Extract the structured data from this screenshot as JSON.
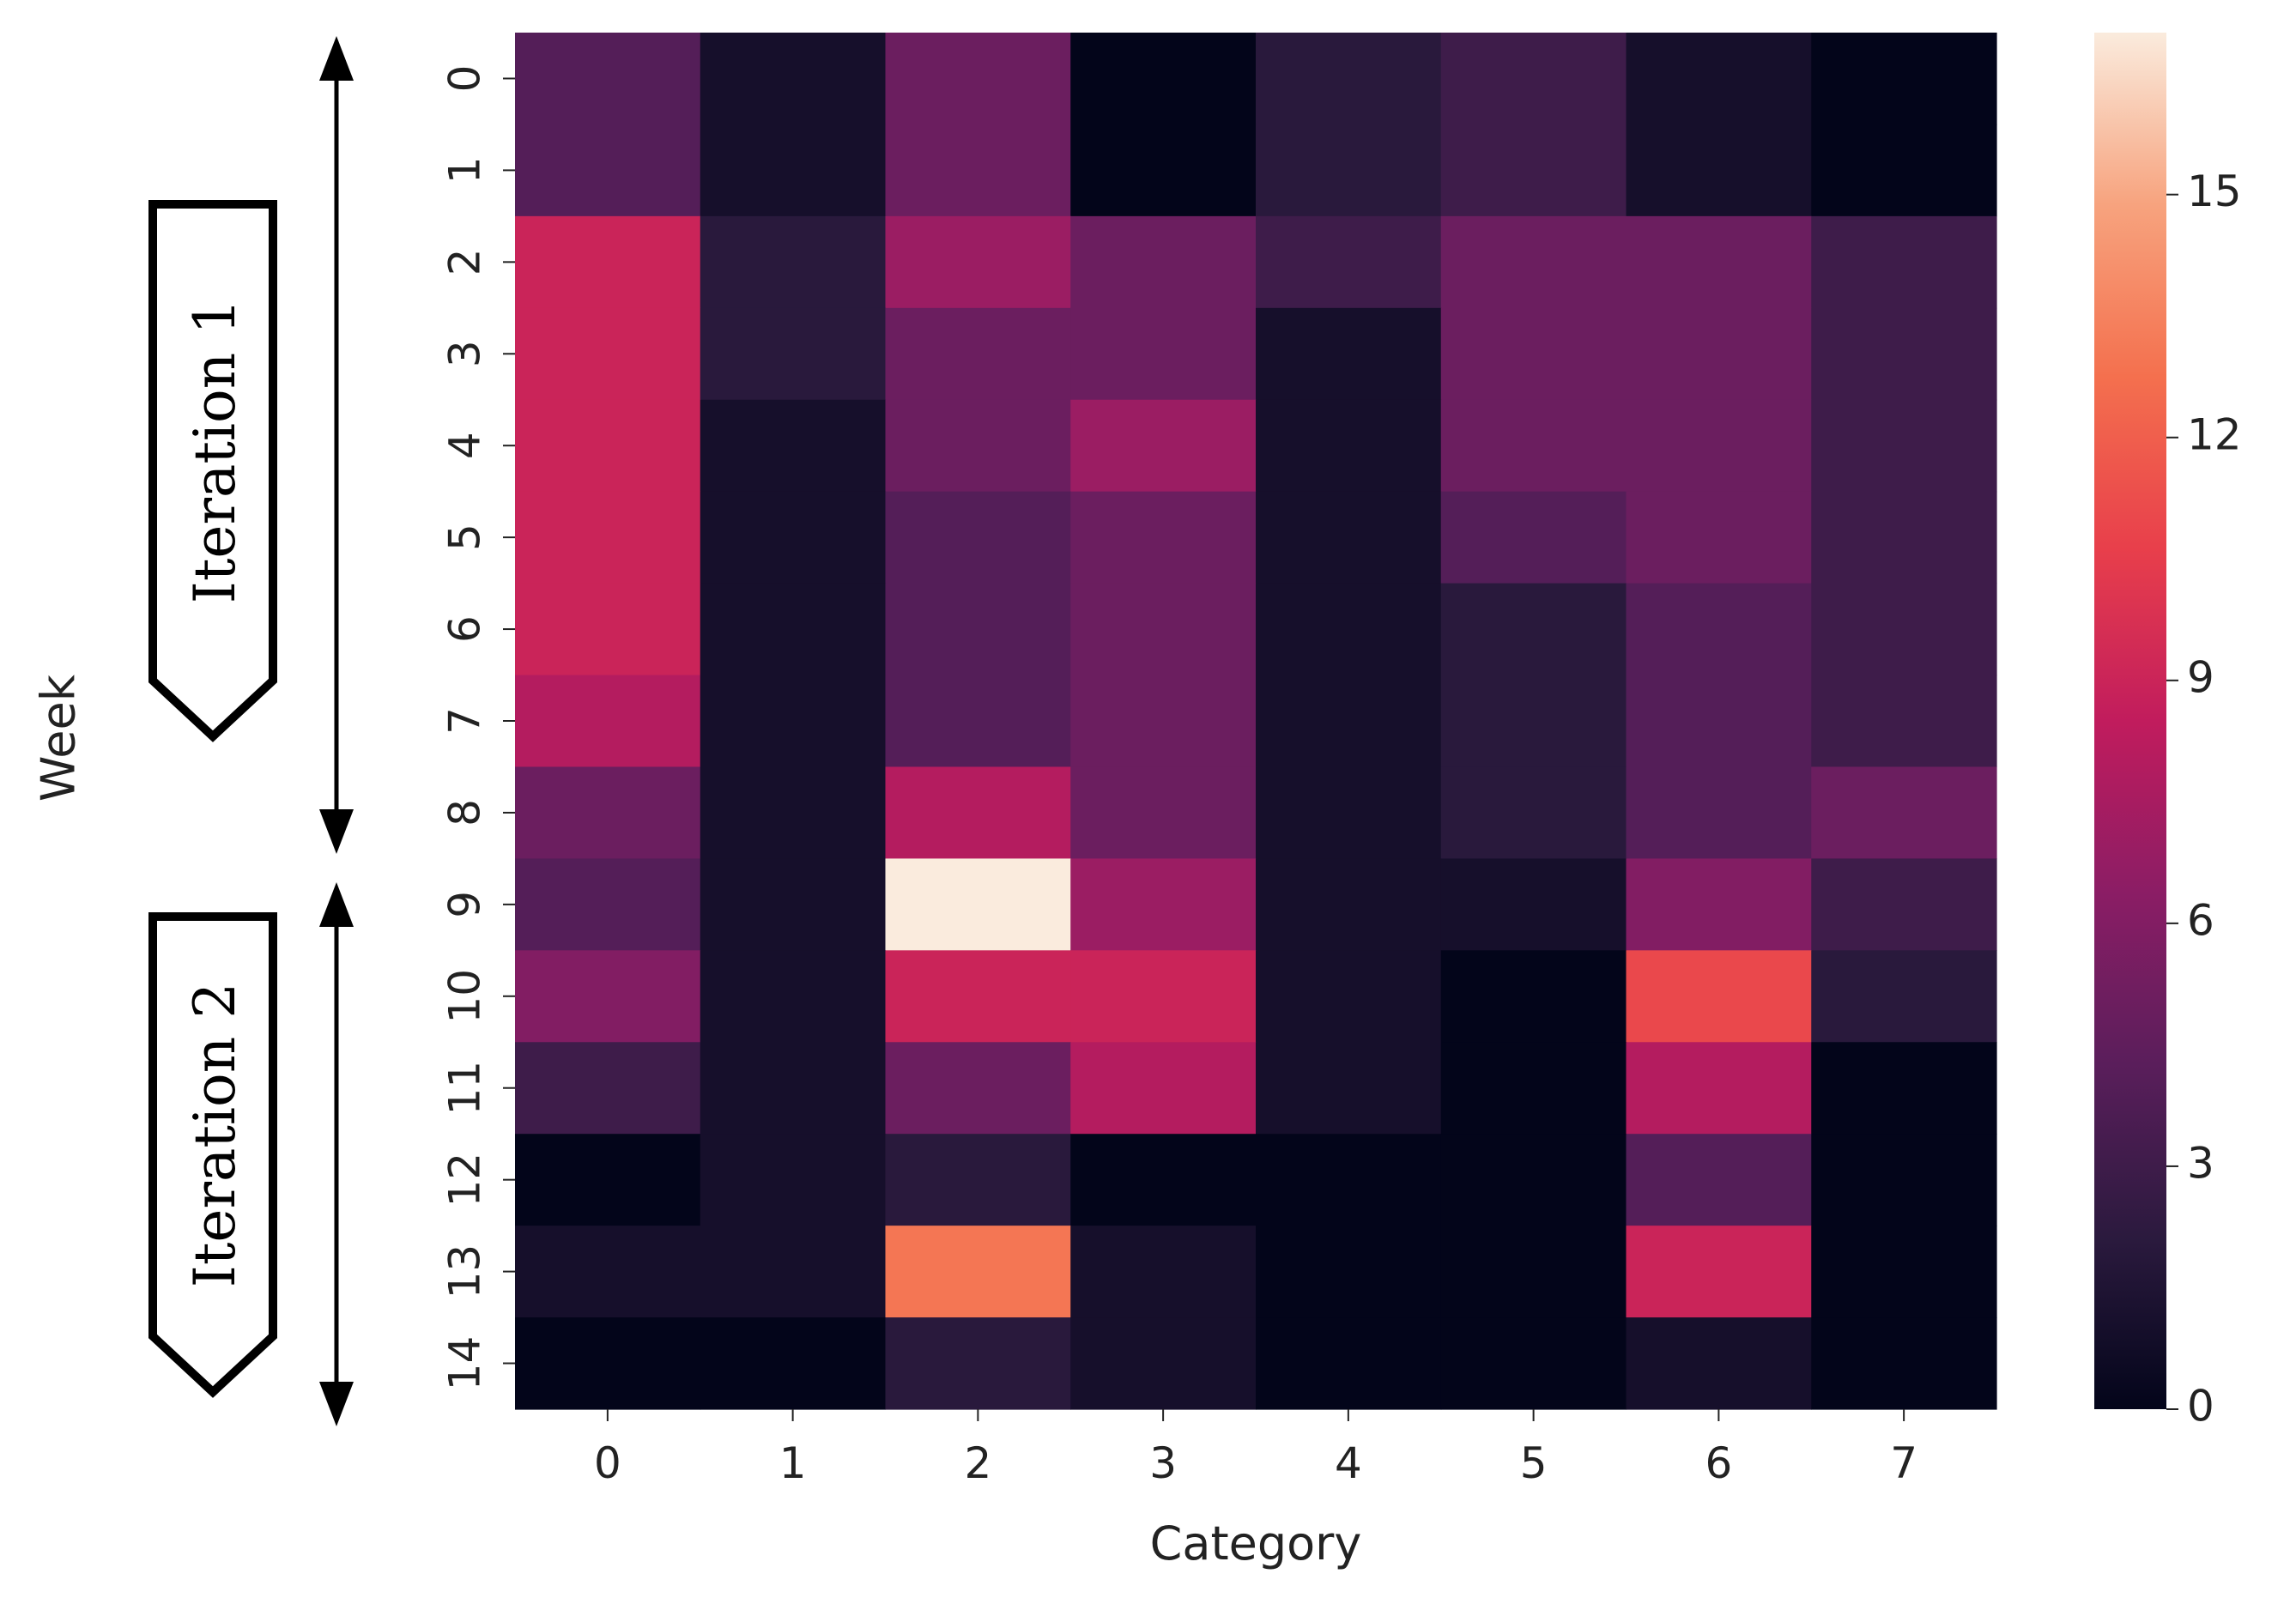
{
  "chart_data": {
    "type": "heatmap",
    "title": "",
    "xlabel": "Category",
    "ylabel": "Week",
    "x_categories": [
      "0",
      "1",
      "2",
      "3",
      "4",
      "5",
      "6",
      "7"
    ],
    "y_categories": [
      "0",
      "1",
      "2",
      "3",
      "4",
      "5",
      "6",
      "7",
      "8",
      "9",
      "10",
      "11",
      "12",
      "13",
      "14"
    ],
    "values": [
      [
        4,
        1,
        5,
        0,
        2,
        3,
        1,
        0
      ],
      [
        4,
        1,
        5,
        0,
        2,
        3,
        1,
        0
      ],
      [
        9,
        2,
        7,
        5,
        3,
        5,
        5,
        3
      ],
      [
        9,
        2,
        5,
        5,
        1,
        5,
        5,
        3
      ],
      [
        9,
        1,
        5,
        7,
        1,
        5,
        5,
        3
      ],
      [
        9,
        1,
        4,
        5,
        1,
        4,
        5,
        3
      ],
      [
        9,
        1,
        4,
        5,
        1,
        2,
        4,
        3
      ],
      [
        8,
        1,
        4,
        5,
        1,
        2,
        4,
        3
      ],
      [
        5,
        1,
        8,
        5,
        1,
        2,
        4,
        5
      ],
      [
        4,
        1,
        17,
        7,
        1,
        1,
        6,
        3
      ],
      [
        6,
        1,
        9,
        9,
        1,
        0,
        11,
        2
      ],
      [
        3,
        1,
        5,
        8,
        1,
        0,
        8,
        0
      ],
      [
        0,
        1,
        2,
        0,
        0,
        0,
        4,
        0
      ],
      [
        1,
        1,
        13,
        1,
        0,
        0,
        9,
        0
      ],
      [
        0,
        0,
        2,
        1,
        0,
        0,
        1,
        0
      ]
    ],
    "colorbar": {
      "min": 0,
      "max": 17,
      "ticks": [
        0,
        3,
        6,
        9,
        12,
        15
      ]
    },
    "colormap_stops": [
      "#03051a",
      "#2b1a3e",
      "#5a1e5b",
      "#8b1d65",
      "#c11c5d",
      "#e83f4b",
      "#f4704e",
      "#f7a37e",
      "#faebdd"
    ],
    "annotations": [
      {
        "label": "Iteration 1",
        "rows": [
          0,
          8
        ]
      },
      {
        "label": "Iteration 2",
        "rows": [
          9,
          14
        ]
      }
    ]
  }
}
